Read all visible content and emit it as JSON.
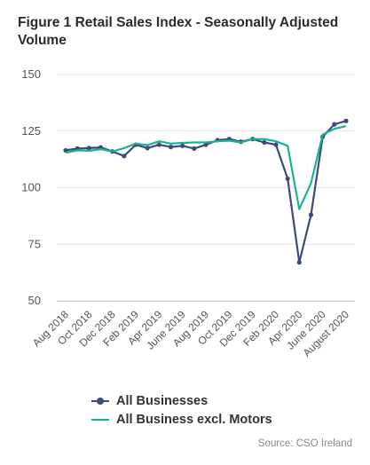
{
  "title": "Figure 1 Retail Sales Index - Seasonally Adjusted Volume",
  "source": "Source: CSO Ireland",
  "colors": {
    "series1": "#3d4a7a",
    "series2": "#19b394",
    "grid": "#e6e6e6",
    "axis": "#cccccc"
  },
  "chart_data": {
    "type": "line",
    "title": "Figure 1 Retail Sales Index - Seasonally Adjusted Volume",
    "xlabel": "",
    "ylabel": "",
    "ylim": [
      50,
      150
    ],
    "yticks": [
      50,
      75,
      100,
      125,
      150
    ],
    "grid": true,
    "legend_position": "bottom",
    "x": [
      "Aug 2018",
      "Sep 2018",
      "Oct 2018",
      "Nov 2018",
      "Dec 2018",
      "Jan 2019",
      "Feb 2019",
      "Mar 2019",
      "Apr 2019",
      "May 2019",
      "June 2019",
      "July 2019",
      "Aug 2019",
      "Sep 2019",
      "Oct 2019",
      "Nov 2019",
      "Dec 2019",
      "Jan 2020",
      "Feb 2020",
      "Mar 2020",
      "Apr 2020",
      "May 2020",
      "June 2020",
      "July 2020",
      "August 2020"
    ],
    "x_tick_labels": [
      "Aug 2018",
      "Oct 2018",
      "Dec 2018",
      "Feb 2019",
      "Apr 2019",
      "June 2019",
      "Aug 2019",
      "Oct 2019",
      "Dec 2019",
      "Feb 2020",
      "Apr 2020",
      "June 2020",
      "August 2020"
    ],
    "series": [
      {
        "name": "All Businesses",
        "values": [
          116.5,
          117.3,
          117.5,
          117.8,
          116.0,
          114.0,
          119.0,
          117.5,
          119.0,
          118.0,
          118.5,
          117.3,
          119.0,
          121.0,
          121.5,
          120.3,
          121.5,
          120.0,
          119.0,
          104.0,
          67.0,
          88.0,
          122.5,
          128.0,
          129.5
        ]
      },
      {
        "name": "All Business excl. Motors",
        "values": [
          115.5,
          116.5,
          116.3,
          117.0,
          116.0,
          117.5,
          119.5,
          118.8,
          120.5,
          119.5,
          119.8,
          120.0,
          120.0,
          120.5,
          120.8,
          120.0,
          121.5,
          121.5,
          120.5,
          118.5,
          90.5,
          102.0,
          123.5,
          126.0,
          127.2
        ]
      }
    ]
  }
}
